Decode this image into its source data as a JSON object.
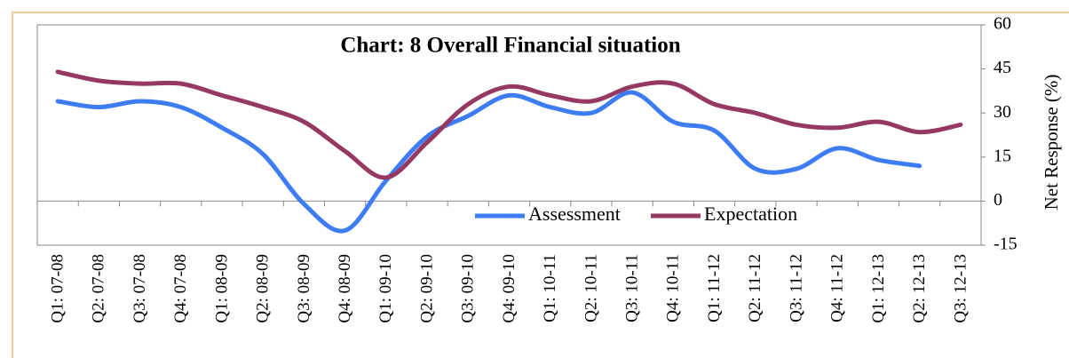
{
  "chart_data": {
    "type": "line",
    "title": "Chart: 8 Overall  Financial situation",
    "y_label": "Net Response (%)",
    "categories": [
      "Q1: 07-08",
      "Q2: 07-08",
      "Q3: 07-08",
      "Q4: 07-08",
      "Q1: 08-09",
      "Q2: 08-09",
      "Q3: 08-09",
      "Q4: 08-09",
      "Q1: 09-10",
      "Q2: 09-10",
      "Q3: 09-10",
      "Q4: 09-10",
      "Q1: 10-11",
      "Q2: 10-11",
      "Q3: 10-11",
      "Q4: 10-11",
      "Q1: 11-12",
      "Q2: 11-12",
      "Q3: 11-12",
      "Q4: 11-12",
      "Q1: 12-13",
      "Q2: 12-13",
      "Q3: 12-13"
    ],
    "series": [
      {
        "name": "Assessment",
        "color": "#3d7cf5",
        "values": [
          34,
          32,
          34,
          32,
          25,
          16,
          -1,
          -10,
          7,
          22,
          29,
          36,
          32,
          30,
          37,
          27,
          24,
          11,
          11,
          18,
          14,
          12,
          null
        ]
      },
      {
        "name": "Expectation",
        "color": "#953862",
        "values": [
          44,
          41,
          40,
          40,
          36,
          32,
          27,
          17,
          8,
          20,
          33,
          39,
          36,
          34,
          39,
          40,
          33,
          30,
          26,
          25,
          27,
          23.5,
          26
        ]
      }
    ],
    "ylim": [
      -15,
      60
    ],
    "yticks": [
      -15,
      0,
      15,
      30,
      45,
      60
    ],
    "y_axis_side": "right",
    "grid": false,
    "smooth": true
  }
}
